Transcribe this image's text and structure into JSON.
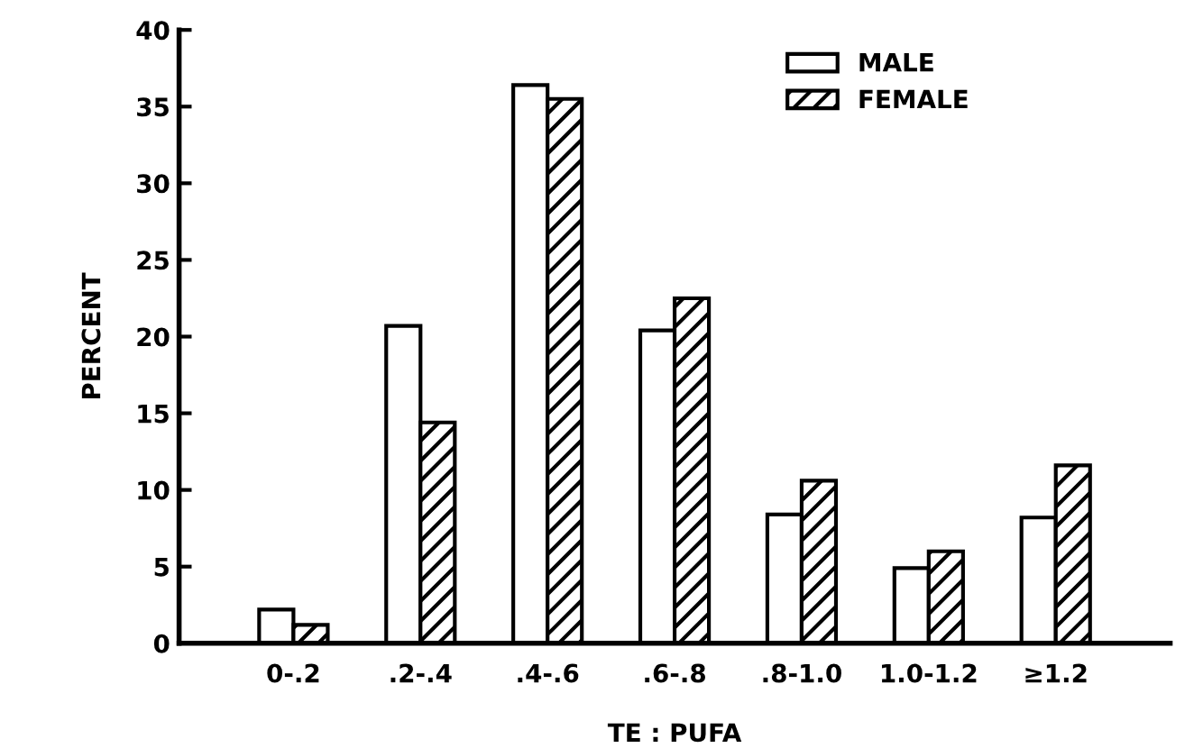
{
  "chart_data": {
    "type": "bar",
    "xlabel": "TE : PUFA",
    "ylabel": "PERCENT",
    "categories": [
      "0-.2",
      ".2-.4",
      ".4-.6",
      ".6-.8",
      ".8-1.0",
      "1.0-1.2",
      "≥1.2"
    ],
    "series": [
      {
        "name": "MALE",
        "color": "#ffffff",
        "values": [
          2.2,
          20.7,
          36.4,
          20.4,
          8.4,
          4.9,
          8.2
        ]
      },
      {
        "name": "FEMALE",
        "color": "#000000",
        "values": [
          1.2,
          14.4,
          35.5,
          22.5,
          10.6,
          6.0,
          11.6
        ]
      }
    ],
    "ylim": [
      0,
      40
    ],
    "yticks": [
      0,
      5,
      10,
      15,
      20,
      25,
      30,
      35,
      40
    ],
    "grid": false,
    "legend": "top right"
  }
}
